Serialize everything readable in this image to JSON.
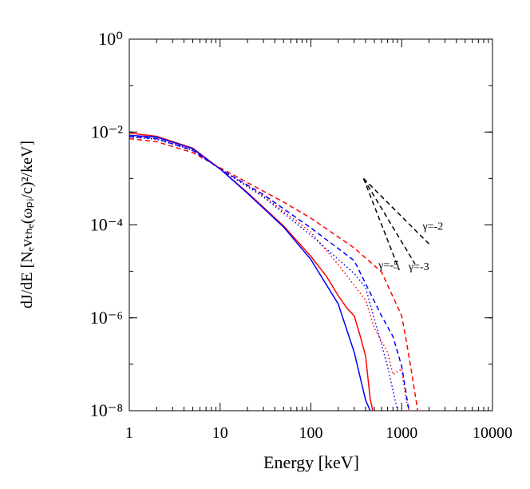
{
  "chart_data": {
    "type": "line",
    "x_label": "Energy [keV]",
    "y_label": "dJ/dE [Nₑvₜₕₑ(ωₚᵢ/c)²/keV]",
    "log_x": true,
    "log_y": true,
    "xlim": [
      1,
      10000
    ],
    "ylim": [
      1e-08,
      1
    ],
    "xticks": [
      1,
      10,
      100,
      1000,
      10000
    ],
    "yticks": [
      {
        "value": 1,
        "label": "10⁰"
      },
      {
        "value": 0.01,
        "label": "10⁻²"
      },
      {
        "value": 0.0001,
        "label": "10⁻⁴"
      },
      {
        "value": 1e-06,
        "label": "10⁻⁶"
      },
      {
        "value": 1e-08,
        "label": "10⁻⁸"
      }
    ],
    "series": [
      {
        "color": "#ff0000",
        "dash": "solid",
        "x": [
          1,
          2,
          5,
          10,
          20,
          50,
          100,
          150,
          200,
          250,
          300,
          350,
          400,
          450,
          480
        ],
        "values": [
          0.0095,
          0.0081,
          0.0045,
          0.0016,
          0.0005,
          9.5e-05,
          2.1e-05,
          7.6e-06,
          3e-06,
          1.6e-06,
          1.1e-06,
          4e-07,
          1.5e-07,
          1.8e-08,
          1e-08
        ]
      },
      {
        "color": "#0000ff",
        "dash": "solid",
        "x": [
          1,
          2,
          5,
          10,
          20,
          50,
          100,
          200,
          300,
          400,
          450
        ],
        "values": [
          0.0085,
          0.0078,
          0.0044,
          0.0016,
          0.00048,
          9e-05,
          1.8e-05,
          2e-06,
          1.8e-07,
          1.7e-08,
          1e-08
        ]
      },
      {
        "color": "#ff0000",
        "dash": "dotted",
        "x": [
          1,
          2,
          5,
          10,
          30,
          100,
          200,
          400,
          500,
          700,
          800,
          1000,
          1100,
          1200
        ],
        "values": [
          0.008,
          0.0072,
          0.0042,
          0.0016,
          0.00042,
          7e-05,
          1.4e-05,
          2.4e-06,
          6e-07,
          1.8e-07,
          6e-08,
          8e-08,
          2e-08,
          1e-08
        ]
      },
      {
        "color": "#0000ff",
        "dash": "dotted",
        "x": [
          1,
          2,
          5,
          10,
          30,
          100,
          300,
          400,
          700,
          900
        ],
        "values": [
          0.0078,
          0.007,
          0.0041,
          0.0016,
          0.0004,
          6e-05,
          9e-06,
          4.5e-06,
          9e-08,
          1e-08
        ]
      },
      {
        "color": "#ff0000",
        "dash": "dashed",
        "x": [
          1,
          2,
          5,
          10,
          50,
          100,
          300,
          600,
          1000,
          1100,
          1300,
          1500
        ],
        "values": [
          0.0072,
          0.0062,
          0.0036,
          0.0017,
          0.00031,
          0.00014,
          3.2e-05,
          9.7e-06,
          1.1e-06,
          4e-07,
          6e-08,
          1e-08
        ]
      },
      {
        "color": "#0000ff",
        "dash": "dashed",
        "x": [
          1,
          2,
          5,
          10,
          30,
          100,
          300,
          600,
          800,
          1000,
          1200
        ],
        "values": [
          0.008,
          0.0072,
          0.004,
          0.0016,
          0.00045,
          8.6e-05,
          1.7e-05,
          1.1e-06,
          4e-07,
          9e-08,
          1e-08
        ]
      }
    ],
    "reference_lines": [
      {
        "label": "γ=-2",
        "x": [
          380,
          2000
        ],
        "values": [
          0.001,
          3.9e-05
        ]
      },
      {
        "label": "γ=-3",
        "x": [
          380,
          1400
        ],
        "values": [
          0.001,
          1.45e-05
        ]
      },
      {
        "label": "γ=-5",
        "x": [
          380,
          940
        ],
        "values": [
          0.001,
          1.07e-05
        ]
      }
    ]
  }
}
